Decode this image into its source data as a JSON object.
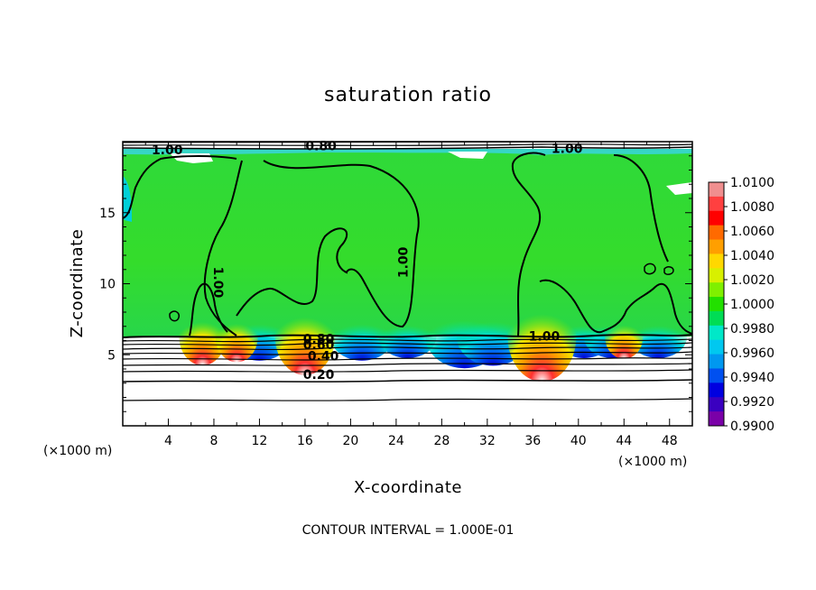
{
  "chart_data": {
    "type": "heatmap",
    "title": "saturation ratio",
    "xlabel": "X-coordinate",
    "ylabel": "Z-coordinate",
    "x_unit_label": "(×1000 m)",
    "x_range": [
      0,
      50
    ],
    "y_range": [
      0,
      20
    ],
    "x_ticks": [
      4,
      8,
      12,
      16,
      20,
      24,
      28,
      32,
      36,
      40,
      44,
      48
    ],
    "y_ticks": [
      5,
      10,
      15
    ],
    "colorbar": {
      "labels": [
        "1.0100",
        "1.0080",
        "1.0060",
        "1.0040",
        "1.0020",
        "1.0000",
        "0.9980",
        "0.9960",
        "0.9940",
        "0.9920",
        "0.9900"
      ],
      "colors": [
        "#f08f8f",
        "#ff4040",
        "#ff0000",
        "#ff6a00",
        "#ff9f00",
        "#ffd800",
        "#d8f000",
        "#7ff000",
        "#22e000",
        "#00dd55",
        "#00e8c8",
        "#00c8f0",
        "#0098f0",
        "#0050f0",
        "#0000e0",
        "#3a00c0",
        "#7a00a8"
      ]
    },
    "contour_interval": "CONTOUR INTERVAL = 1.000E-01",
    "contour_labels": [
      {
        "text": "1.00",
        "x": 3.9,
        "z": 19.1
      },
      {
        "text": "0.80",
        "x": 17.4,
        "z": 19.4
      },
      {
        "text": "1.00",
        "x": 39.0,
        "z": 19.2
      },
      {
        "text": "1.00",
        "x": 8.0,
        "z": 10.1
      },
      {
        "text": "1.00",
        "x": 25.0,
        "z": 11.5
      },
      {
        "text": "1.00",
        "x": 37.0,
        "z": 6.0
      },
      {
        "text": "0.80",
        "x": 17.2,
        "z": 5.8
      },
      {
        "text": "0.60",
        "x": 17.2,
        "z": 5.4
      },
      {
        "text": "0.40",
        "x": 17.6,
        "z": 4.6
      },
      {
        "text": "0.20",
        "x": 17.2,
        "z": 3.3
      }
    ],
    "warm_plumes": [
      {
        "x": 7,
        "strength": 0.5
      },
      {
        "x": 10,
        "strength": 0.4
      },
      {
        "x": 16,
        "strength": 0.8
      },
      {
        "x": 36.8,
        "strength": 1.0
      },
      {
        "x": 44,
        "strength": 0.3
      }
    ],
    "cool_pockets": [
      {
        "x": 12,
        "strength": 0.6
      },
      {
        "x": 21,
        "strength": 0.6
      },
      {
        "x": 25,
        "strength": 0.5
      },
      {
        "x": 30,
        "strength": 0.9
      },
      {
        "x": 32.5,
        "strength": 0.8
      },
      {
        "x": 40.5,
        "strength": 0.5
      },
      {
        "x": 43,
        "strength": 0.5
      },
      {
        "x": 47,
        "strength": 0.5
      }
    ]
  }
}
